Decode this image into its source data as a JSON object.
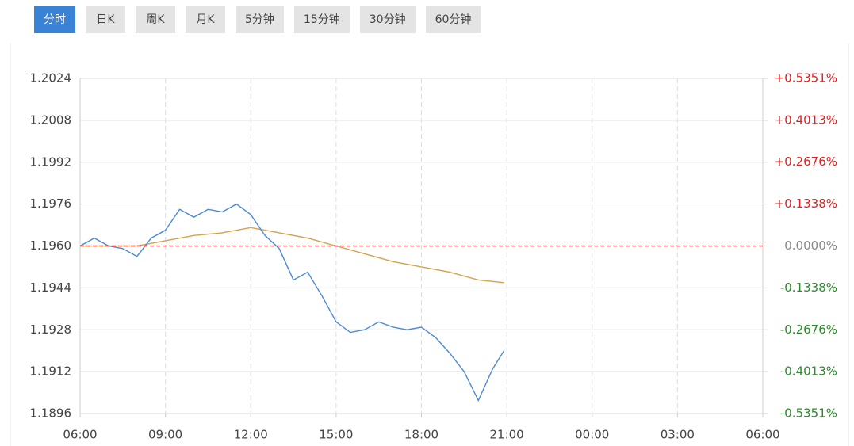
{
  "tabs": [
    "分时",
    "日K",
    "周K",
    "月K",
    "5分钟",
    "15分钟",
    "30分钟",
    "60分钟"
  ],
  "active_tab": 0,
  "chart_data": {
    "type": "line",
    "xlim": [
      6,
      30
    ],
    "xticks": [
      {
        "value": 6,
        "label": "06:00"
      },
      {
        "value": 9,
        "label": "09:00"
      },
      {
        "value": 12,
        "label": "12:00"
      },
      {
        "value": 15,
        "label": "15:00"
      },
      {
        "value": 18,
        "label": "18:00"
      },
      {
        "value": 21,
        "label": "21:00"
      },
      {
        "value": 24,
        "label": "00:00"
      },
      {
        "value": 27,
        "label": "03:00"
      },
      {
        "value": 30,
        "label": "06:00"
      }
    ],
    "ylim": [
      1.1896,
      1.2024
    ],
    "yticks": [
      {
        "value": 1.2024,
        "label": "1.2024"
      },
      {
        "value": 1.2008,
        "label": "1.2008"
      },
      {
        "value": 1.1992,
        "label": "1.1992"
      },
      {
        "value": 1.1976,
        "label": "1.1976"
      },
      {
        "value": 1.196,
        "label": "1.1960"
      },
      {
        "value": 1.1944,
        "label": "1.1944"
      },
      {
        "value": 1.1928,
        "label": "1.1928"
      },
      {
        "value": 1.1912,
        "label": "1.1912"
      },
      {
        "value": 1.1896,
        "label": "1.1896"
      }
    ],
    "y2lim": [
      -0.5351,
      0.5351
    ],
    "y2ticks": [
      {
        "value": 0.5351,
        "label": "+0.5351%"
      },
      {
        "value": 0.4013,
        "label": "+0.4013%"
      },
      {
        "value": 0.2676,
        "label": "+0.2676%"
      },
      {
        "value": 0.1338,
        "label": "+0.1338%"
      },
      {
        "value": 0,
        "label": "0.0000%"
      },
      {
        "value": -0.1338,
        "label": "-0.1338%"
      },
      {
        "value": -0.2676,
        "label": "-0.2676%"
      },
      {
        "value": -0.4013,
        "label": "-0.4013%"
      },
      {
        "value": -0.5351,
        "label": "-0.5351%"
      }
    ],
    "reference": 1.196,
    "reference_color": "#e02020",
    "up_color": "#e02020",
    "down_color": "#2a8a2a",
    "flat_color": "#888888",
    "grid": true,
    "series": [
      {
        "color": "#4a8ad6",
        "x": [
          6,
          6.5,
          7,
          7.5,
          8,
          8.5,
          9,
          9.5,
          10,
          10.5,
          11,
          11.5,
          12,
          12.5,
          13,
          13.5,
          14,
          14.5,
          15,
          15.5,
          16,
          16.5,
          17,
          17.5,
          18,
          18.5,
          19,
          19.5,
          20,
          20.5,
          20.9
        ],
        "values": [
          1.196,
          1.1963,
          1.196,
          1.1959,
          1.1956,
          1.1963,
          1.1966,
          1.1974,
          1.1971,
          1.1974,
          1.1973,
          1.1976,
          1.1972,
          1.1964,
          1.1959,
          1.1947,
          1.195,
          1.1941,
          1.1931,
          1.1927,
          1.1928,
          1.1931,
          1.1929,
          1.1928,
          1.1929,
          1.1925,
          1.1919,
          1.1912,
          1.1901,
          1.1913,
          1.192
        ]
      },
      {
        "color": "#d4a24c",
        "x": [
          6,
          8,
          9,
          10,
          11,
          12,
          13,
          14,
          15,
          16,
          17,
          18,
          19,
          20,
          20.9
        ],
        "values": [
          1.196,
          1.196,
          1.1962,
          1.1964,
          1.1965,
          1.1967,
          1.1965,
          1.1963,
          1.196,
          1.1957,
          1.1954,
          1.1952,
          1.195,
          1.1947,
          1.1946
        ]
      }
    ]
  }
}
